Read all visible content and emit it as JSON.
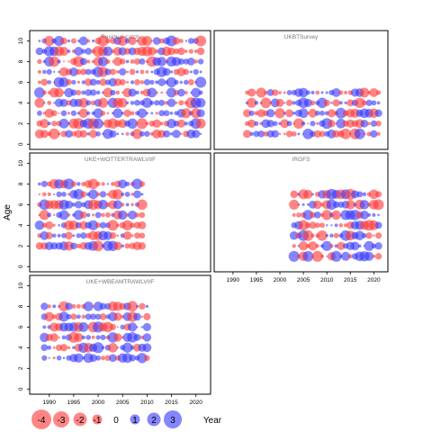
{
  "chart_data": {
    "type": "scatter",
    "style": "bubble-residuals",
    "ylabel": "Age",
    "xlabel": "Year",
    "x_ticks": [
      1990,
      1995,
      2000,
      2005,
      2010,
      2015,
      2020
    ],
    "y_ticks": [
      0,
      2,
      4,
      6,
      8,
      10
    ],
    "xlim": [
      1986,
      2023
    ],
    "ylim": [
      -0.5,
      11
    ],
    "colors": {
      "negative": "#ff3333",
      "positive": "#3333ff"
    },
    "legend": {
      "placement": "bottom-left",
      "entries": [
        "-4",
        "-3",
        "-2",
        "-1",
        "0",
        "1",
        "2",
        "3"
      ]
    },
    "panels": [
      {
        "name": "Residual catch",
        "years": [
          1988,
          2021
        ],
        "ages": [
          1,
          10
        ]
      },
      {
        "name": "UKBTSurvey",
        "years": [
          1993,
          2021
        ],
        "ages": [
          1,
          5
        ]
      },
      {
        "name": "UKE+WOTTERTRAWLVIIF",
        "years": [
          1988,
          2009
        ],
        "ages": [
          2,
          8
        ]
      },
      {
        "name": "IRGFS",
        "years": [
          2003,
          2021
        ],
        "ages": [
          1,
          7
        ]
      },
      {
        "name": "UKE+WBEAMTRAWLVIIF",
        "years": [
          1989,
          2010
        ],
        "ages": [
          3,
          8
        ]
      }
    ]
  }
}
